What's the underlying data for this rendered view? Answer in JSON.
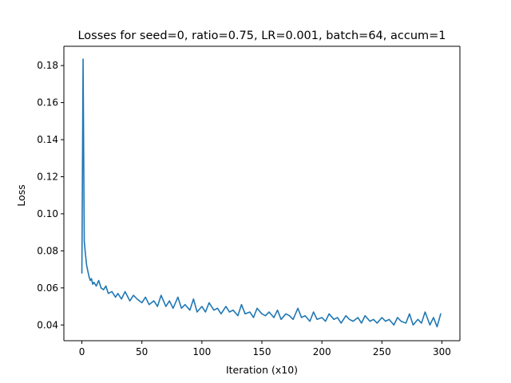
{
  "chart_data": {
    "type": "line",
    "title": "Losses for seed=0, ratio=0.75, LR=0.001, batch=64, accum=1",
    "xlabel": "Iteration (x10)",
    "ylabel": "Loss",
    "xlim": [
      -15,
      315
    ],
    "ylim": [
      0.0315,
      0.1904
    ],
    "xticks": [
      0,
      50,
      100,
      150,
      200,
      250,
      300
    ],
    "xtick_labels": [
      "0",
      "50",
      "100",
      "150",
      "200",
      "250",
      "300"
    ],
    "yticks": [
      0.04,
      0.06,
      0.08,
      0.1,
      0.12,
      0.14,
      0.16,
      0.18
    ],
    "ytick_labels": [
      "0.04",
      "0.06",
      "0.08",
      "0.10",
      "0.12",
      "0.14",
      "0.16",
      "0.18"
    ],
    "grid": false,
    "color": "#1f77b4",
    "series": [
      {
        "x": [
          0,
          1,
          2,
          3,
          4,
          5,
          6,
          7,
          8,
          9,
          10,
          12,
          14,
          16,
          18,
          20,
          22,
          25,
          28,
          30,
          33,
          36,
          40,
          43,
          46,
          50,
          53,
          56,
          60,
          63,
          66,
          70,
          73,
          76,
          80,
          83,
          86,
          90,
          93,
          96,
          100,
          103,
          106,
          110,
          113,
          116,
          120,
          123,
          126,
          130,
          133,
          136,
          140,
          143,
          146,
          150,
          153,
          156,
          160,
          163,
          166,
          170,
          173,
          176,
          180,
          183,
          186,
          190,
          193,
          196,
          200,
          203,
          206,
          210,
          213,
          216,
          220,
          223,
          226,
          230,
          233,
          236,
          240,
          243,
          246,
          250,
          253,
          256,
          260,
          263,
          266,
          270,
          273,
          276,
          280,
          283,
          286,
          290,
          293,
          296,
          299
        ],
        "y": [
          0.068,
          0.1835,
          0.085,
          0.078,
          0.072,
          0.069,
          0.066,
          0.064,
          0.065,
          0.062,
          0.063,
          0.061,
          0.064,
          0.06,
          0.059,
          0.061,
          0.057,
          0.058,
          0.055,
          0.057,
          0.054,
          0.058,
          0.053,
          0.056,
          0.054,
          0.052,
          0.055,
          0.051,
          0.053,
          0.05,
          0.056,
          0.05,
          0.053,
          0.049,
          0.055,
          0.049,
          0.051,
          0.048,
          0.054,
          0.047,
          0.05,
          0.047,
          0.052,
          0.048,
          0.049,
          0.046,
          0.05,
          0.047,
          0.048,
          0.045,
          0.051,
          0.046,
          0.047,
          0.044,
          0.049,
          0.046,
          0.045,
          0.047,
          0.044,
          0.048,
          0.043,
          0.046,
          0.045,
          0.043,
          0.049,
          0.044,
          0.045,
          0.042,
          0.047,
          0.043,
          0.044,
          0.042,
          0.046,
          0.043,
          0.044,
          0.041,
          0.045,
          0.043,
          0.042,
          0.044,
          0.041,
          0.045,
          0.042,
          0.043,
          0.041,
          0.044,
          0.042,
          0.043,
          0.04,
          0.044,
          0.042,
          0.041,
          0.046,
          0.04,
          0.043,
          0.041,
          0.047,
          0.04,
          0.044,
          0.039,
          0.046
        ]
      }
    ]
  }
}
